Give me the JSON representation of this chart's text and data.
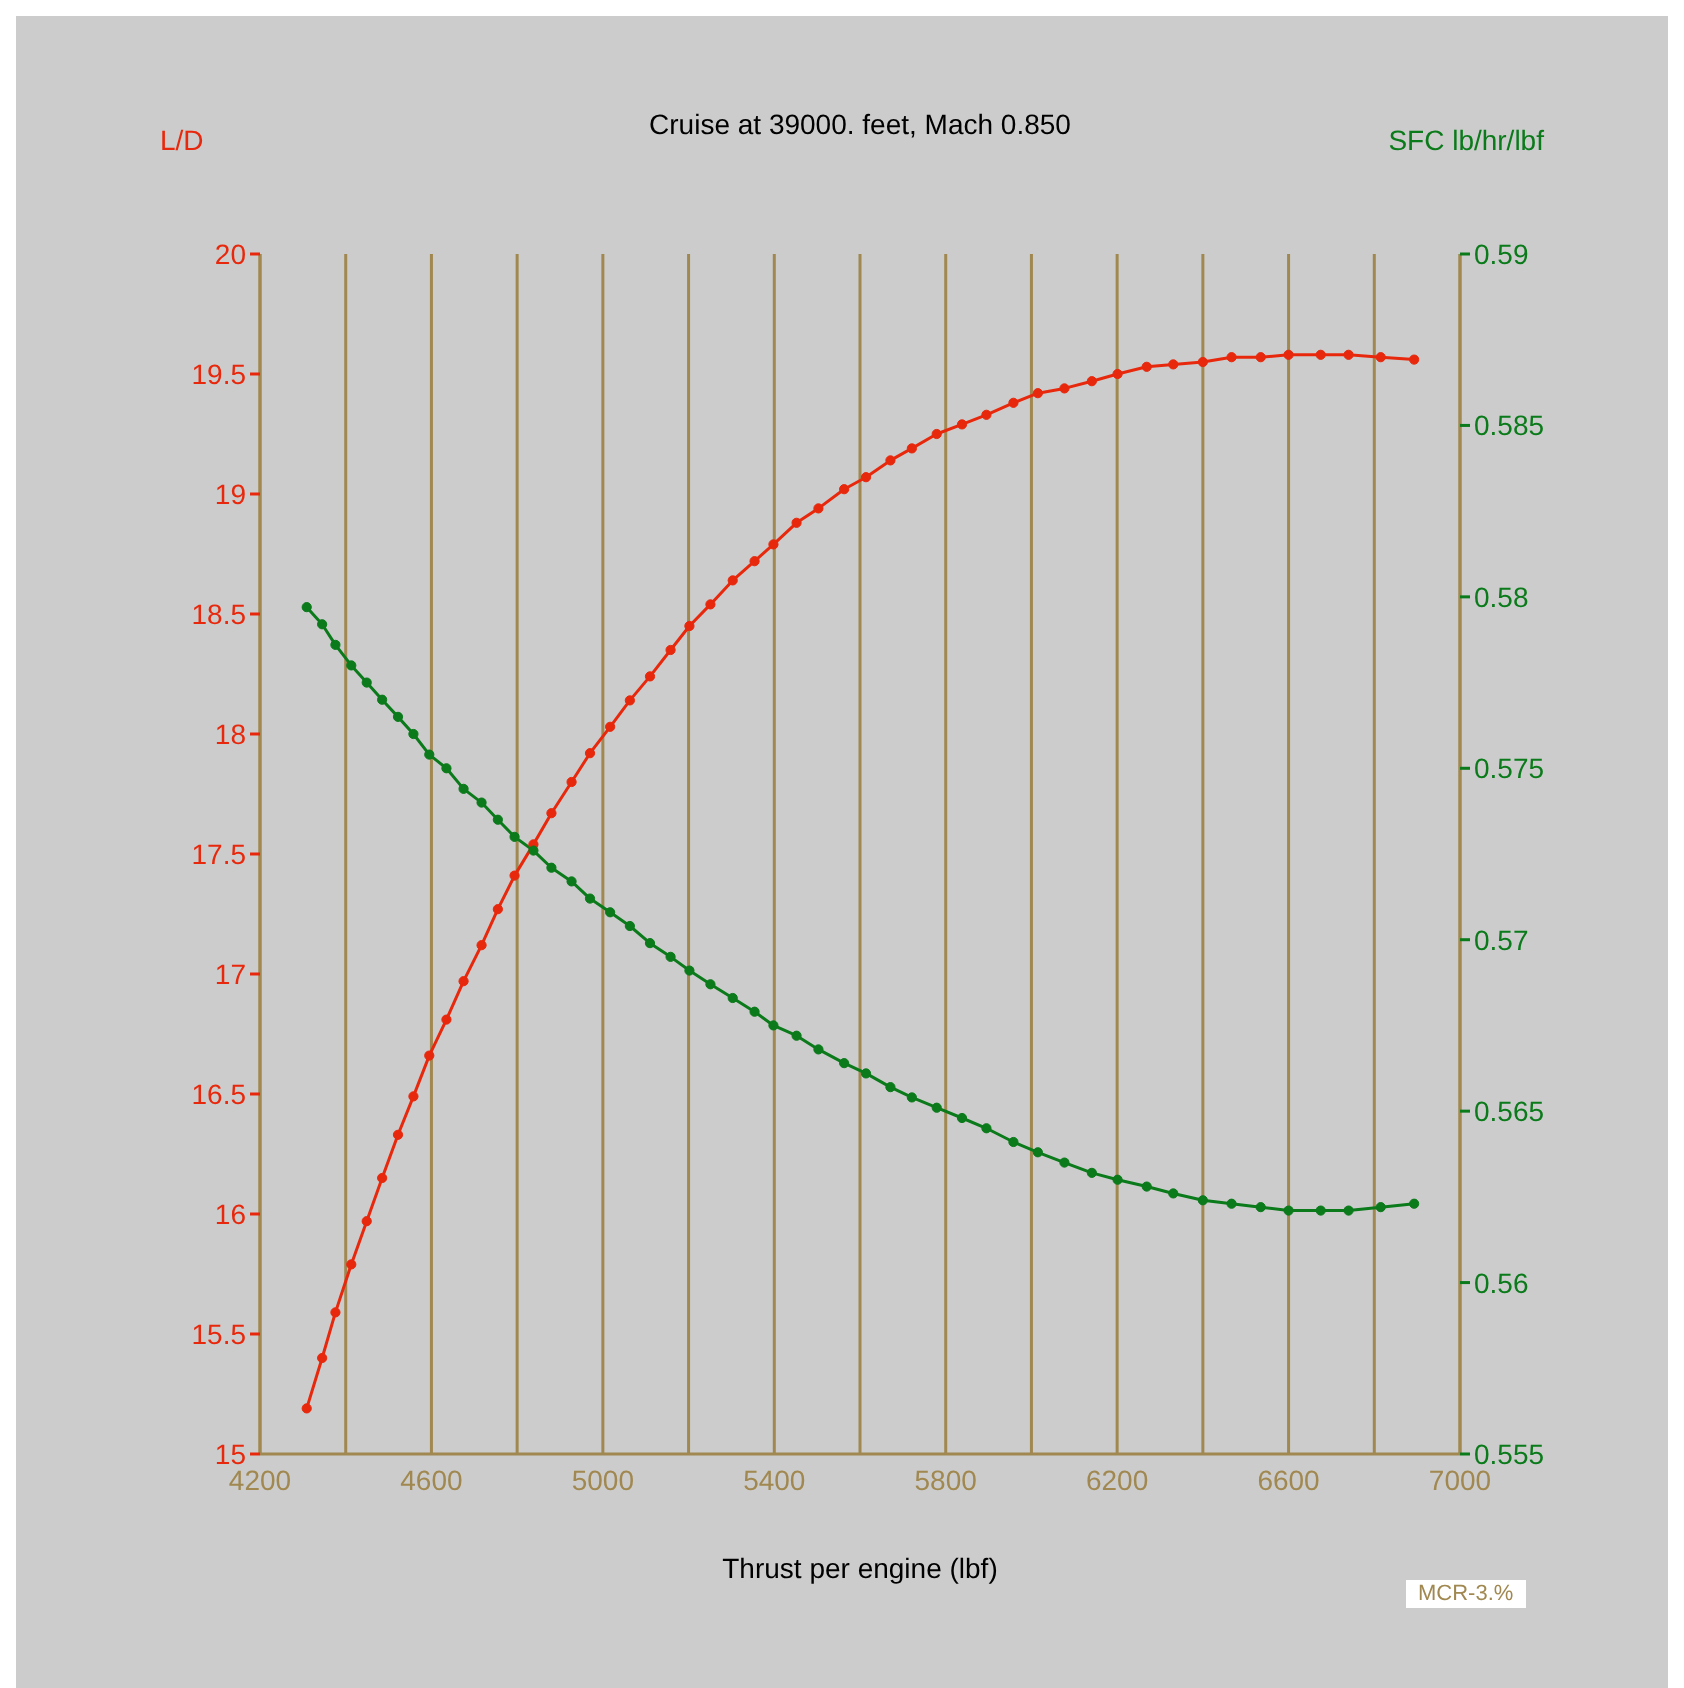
{
  "chart_data": {
    "type": "line",
    "title": "Cruise at 39000. feet, Mach 0.850",
    "xlabel": "Thrust per engine (lbf)",
    "ylabel": "L/D",
    "y2label": "SFC lb/hr/lbf",
    "annotations": [
      "MCR-3.%"
    ],
    "x": [
      4309,
      4345,
      4376,
      4413,
      4449,
      4485,
      4522,
      4558,
      4595,
      4635,
      4675,
      4717,
      4755,
      4794,
      4838,
      4880,
      4927,
      4970,
      5017,
      5063,
      5110,
      5158,
      5202,
      5251,
      5303,
      5354,
      5398,
      5452,
      5503,
      5563,
      5614,
      5671,
      5721,
      5779,
      5838,
      5895,
      5958,
      6015,
      6077,
      6141,
      6201,
      6269,
      6331,
      6400,
      6467,
      6535,
      6600,
      6675,
      6740,
      6815,
      6893
    ],
    "series": [
      {
        "color": "#e8280c",
        "values": [
          15.19,
          15.4,
          15.59,
          15.79,
          15.97,
          16.15,
          16.33,
          16.49,
          16.66,
          16.81,
          16.97,
          17.12,
          17.27,
          17.41,
          17.54,
          17.67,
          17.8,
          17.92,
          18.03,
          18.14,
          18.24,
          18.35,
          18.45,
          18.54,
          18.64,
          18.72,
          18.79,
          18.88,
          18.94,
          19.02,
          19.07,
          19.14,
          19.19,
          19.25,
          19.29,
          19.33,
          19.38,
          19.42,
          19.44,
          19.47,
          19.5,
          19.53,
          19.54,
          19.55,
          19.57,
          19.57,
          19.58,
          19.58,
          19.58,
          19.57,
          19.56
        ]
      },
      {
        "color": "#0a7a1a",
        "axis": "y2",
        "values": [
          0.5797,
          0.5792,
          0.5786,
          0.578,
          0.5775,
          0.577,
          0.5765,
          0.576,
          0.5754,
          0.575,
          0.5744,
          0.574,
          0.5735,
          0.573,
          0.5726,
          0.5721,
          0.5717,
          0.5712,
          0.5708,
          0.5704,
          0.5699,
          0.5695,
          0.5691,
          0.5687,
          0.5683,
          0.5679,
          0.5675,
          0.5672,
          0.5668,
          0.5664,
          0.5661,
          0.5657,
          0.5654,
          0.5651,
          0.5648,
          0.5645,
          0.5641,
          0.5638,
          0.5635,
          0.5632,
          0.563,
          0.5628,
          0.5626,
          0.5624,
          0.5623,
          0.5622,
          0.5621,
          0.5621,
          0.5621,
          0.5622,
          0.5623
        ]
      }
    ],
    "xlim": [
      4200,
      7000
    ],
    "xticks": [
      4200,
      {
        "value": 4400,
        "label": null
      },
      4600,
      {
        "value": 4800,
        "label": null
      },
      5000,
      {
        "value": 5200,
        "label": null
      },
      5400,
      {
        "value": 5600,
        "label": null
      },
      5800,
      {
        "value": 6000,
        "label": null
      },
      6200,
      {
        "value": 6400,
        "label": null
      },
      6600,
      {
        "value": 6800,
        "label": null
      },
      7000
    ],
    "ylim": [
      15,
      20
    ],
    "yticks": [
      15,
      15.5,
      16,
      16.5,
      17,
      17.5,
      18,
      18.5,
      19,
      19.5,
      20
    ],
    "y2lim": [
      0.555,
      0.59
    ],
    "y2ticks": [
      0.555,
      0.56,
      0.565,
      0.57,
      0.575,
      0.58,
      0.585,
      0.59
    ],
    "grid": "x",
    "marker": "circle",
    "line_style": "solid"
  }
}
